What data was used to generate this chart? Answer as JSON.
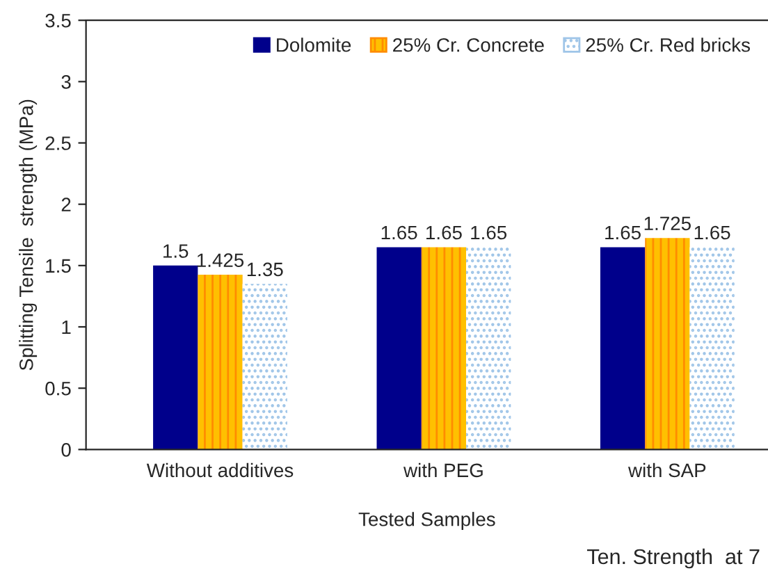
{
  "chart_data": {
    "type": "bar",
    "ylabel": "Splitting Tensile  strength (MPa)",
    "xlabel": "Tested Samples",
    "categories": [
      "Without additives",
      "with PEG",
      "with SAP"
    ],
    "series": [
      {
        "name": "Dolomite",
        "color": "#00008b",
        "values": [
          1.5,
          1.65,
          1.65
        ]
      },
      {
        "name": "25% Cr. Concrete",
        "color": "#ffc000",
        "values": [
          1.425,
          1.65,
          1.725
        ]
      },
      {
        "name": "25% Cr. Red bricks",
        "color": "#ffffff",
        "values": [
          1.35,
          1.65,
          1.65
        ]
      }
    ],
    "ylim": [
      0,
      3.5
    ],
    "yticks": [
      0,
      0.5,
      1,
      1.5,
      2,
      2.5,
      3,
      3.5
    ],
    "data_labels": true,
    "legend": "top right",
    "grid": false,
    "annotations": [
      "Ten. Strength  at 7"
    ]
  }
}
